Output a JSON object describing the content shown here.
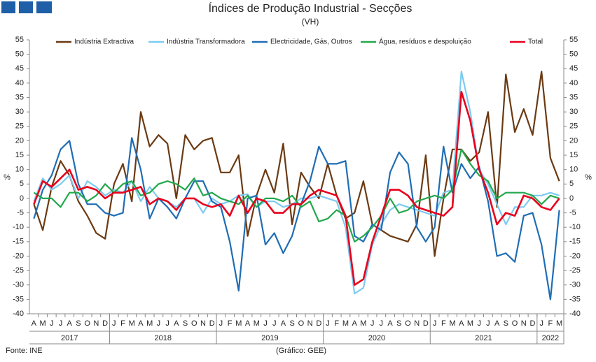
{
  "chart_data": {
    "type": "line",
    "title": "Índices de Produção Industrial - Secções",
    "subtitle": "(VH)",
    "ylabel": "%",
    "y2label": "%",
    "source": "Fonte: INE",
    "credit": "(Gráfico: GEE)",
    "legend": "top",
    "grid": false,
    "categories": [
      "A",
      "M",
      "J",
      "J",
      "A",
      "S",
      "O",
      "N",
      "D",
      "J",
      "F",
      "M",
      "A",
      "M",
      "J",
      "J",
      "A",
      "S",
      "O",
      "N",
      "D",
      "J",
      "F",
      "M",
      "A",
      "M",
      "J",
      "J",
      "A",
      "S",
      "O",
      "N",
      "D",
      "J",
      "F",
      "M",
      "A",
      "M",
      "J",
      "J",
      "A",
      "S",
      "O",
      "N",
      "D",
      "J",
      "F",
      "M",
      "A",
      "M",
      "J",
      "J",
      "A",
      "S",
      "O",
      "N",
      "D",
      "J",
      "F",
      "M"
    ],
    "years": [
      "2017",
      "2018",
      "2019",
      "2020",
      "2021",
      "2022"
    ],
    "ylim": [
      -40,
      55
    ],
    "yticks": [
      -40,
      -35,
      -30,
      -25,
      -20,
      -15,
      -10,
      -5,
      0,
      5,
      10,
      15,
      20,
      25,
      30,
      35,
      40,
      45,
      50,
      55
    ],
    "y2lim": [
      -40,
      55
    ],
    "y2ticks": [
      -40,
      -35,
      -30,
      -25,
      -20,
      -15,
      -10,
      -5,
      0,
      5,
      10,
      15,
      20,
      25,
      30,
      35,
      40,
      45,
      50,
      55
    ],
    "series": [
      {
        "name": "Indústria Extractiva",
        "color": "#6b3a12",
        "values": [
          -2,
          -11,
          4,
          13,
          8,
          -1,
          -6,
          -12,
          -14,
          5,
          12,
          -1,
          30,
          18,
          22,
          19,
          0,
          22,
          17,
          20,
          21,
          9,
          9,
          15,
          -13,
          1,
          10,
          2,
          19,
          -9,
          9,
          4,
          0,
          12,
          1,
          -7,
          -5,
          6,
          -9,
          -11,
          -13,
          -14,
          -15,
          -9,
          15,
          -20,
          0,
          17,
          17,
          13,
          16,
          30,
          -3,
          43,
          23,
          31,
          22,
          44,
          14,
          6
        ]
      },
      {
        "name": "Indústria Transformadora",
        "color": "#7ccbf2",
        "values": [
          -1,
          7,
          3,
          5,
          8,
          0,
          6,
          4,
          1,
          3,
          2,
          6,
          -1,
          4,
          0,
          -1,
          -3,
          0,
          0,
          -5,
          0,
          -2,
          -1,
          1,
          1.5,
          -3,
          -1,
          -1,
          -3,
          -2,
          0,
          0,
          1,
          0,
          -1,
          -10,
          -33,
          -31,
          -16,
          -9,
          -4,
          -2,
          -3,
          -4,
          -5,
          -6,
          2,
          3,
          44,
          30,
          10,
          5,
          -2,
          -9,
          -3,
          -3,
          1,
          1,
          2,
          1
        ]
      },
      {
        "name": "Electricidade, Gás, Outros",
        "color": "#1f6db5",
        "values": [
          -7,
          3,
          8,
          17,
          20,
          5,
          -2,
          -2,
          -5,
          -6,
          -5,
          21,
          10,
          -7,
          0,
          -3,
          -7,
          0,
          6,
          6,
          -1,
          -3,
          -15,
          -32,
          0,
          1,
          -16,
          -12,
          -19,
          -13,
          -2,
          6,
          18,
          12,
          12,
          13,
          -13,
          -15,
          -9,
          -11,
          9,
          16,
          12,
          -10,
          -15,
          -10,
          18,
          2,
          12,
          7,
          11,
          -1,
          -20,
          -19,
          -22,
          -6,
          -5,
          -16,
          -35,
          -4
        ]
      },
      {
        "name": "Água, resíduos e despoluição",
        "color": "#22a84c",
        "values": [
          2,
          0,
          0,
          -3,
          2,
          2,
          -1,
          1,
          5,
          2,
          5,
          6,
          1,
          2,
          5,
          6,
          5,
          3,
          7,
          1,
          2,
          0,
          -1,
          -2,
          1,
          -3,
          0,
          0,
          -1,
          1,
          -3,
          -1,
          -8,
          -7,
          -4,
          -6,
          -15,
          -13,
          -10,
          -6,
          0,
          -5,
          -4,
          -1,
          0,
          1,
          0,
          3,
          17,
          12,
          8,
          6,
          0,
          2,
          2,
          2,
          1,
          -2,
          1,
          0
        ]
      },
      {
        "name": "Total",
        "color": "#e8001c",
        "values": [
          -2,
          6,
          4,
          7,
          10,
          3,
          4,
          3,
          0,
          2,
          2,
          3,
          4,
          -2,
          0,
          -1,
          -4,
          0,
          0,
          -2,
          -3,
          -2,
          -6,
          1,
          -5,
          0,
          -1,
          -5,
          -5,
          -2,
          -2,
          1,
          3,
          2,
          1,
          -6,
          -30,
          -28,
          -15,
          -6,
          3,
          3,
          1,
          -3,
          -4,
          -5,
          -6,
          -3,
          37,
          27,
          10,
          2,
          -9,
          -5,
          -6,
          1,
          0,
          -3,
          -4,
          0
        ]
      }
    ]
  }
}
